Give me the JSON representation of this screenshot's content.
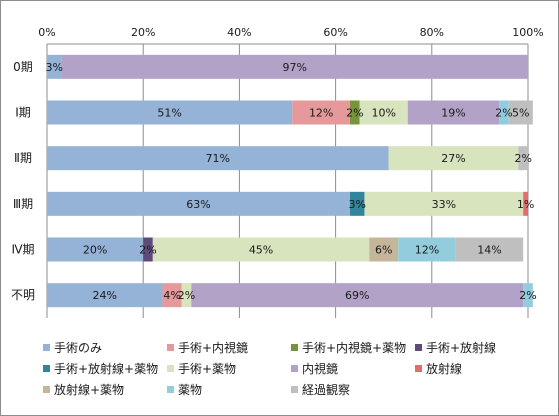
{
  "chart_data": {
    "type": "bar",
    "orientation": "horizontal",
    "stacked": "percent",
    "xlim": [
      0,
      100
    ],
    "x_ticks": [
      "0%",
      "20%",
      "40%",
      "60%",
      "80%",
      "100%"
    ],
    "grid": true,
    "legend_position": "bottom",
    "categories": [
      "0期",
      "Ⅰ期",
      "Ⅱ期",
      "Ⅲ期",
      "Ⅳ期",
      "不明"
    ],
    "series": [
      {
        "name": "手術のみ",
        "color": "#95b3d7",
        "values": [
          3,
          51,
          71,
          63,
          20,
          24
        ],
        "labels": [
          "3%",
          "51%",
          "71%",
          "63%",
          "20%",
          "24%"
        ]
      },
      {
        "name": "手術+内視鏡",
        "color": "#e6999a",
        "values": [
          0,
          12,
          0,
          0,
          0,
          4
        ],
        "labels": [
          "",
          "12%",
          "",
          "",
          "",
          "4%"
        ]
      },
      {
        "name": "手術+内視鏡+薬物",
        "color": "#77933c",
        "values": [
          0,
          2,
          0,
          0,
          0,
          0
        ],
        "labels": [
          "",
          "2%",
          "",
          "",
          "",
          ""
        ]
      },
      {
        "name": "手術+放射線",
        "color": "#604a7b",
        "values": [
          0,
          0,
          0,
          0,
          2,
          0
        ],
        "labels": [
          "",
          "",
          "",
          "",
          "2%",
          ""
        ]
      },
      {
        "name": "手術+放射線+薬物",
        "color": "#31859c",
        "values": [
          0,
          0,
          0,
          3,
          0,
          0
        ],
        "labels": [
          "",
          "",
          "",
          "3%",
          "",
          ""
        ]
      },
      {
        "name": "手術+薬物",
        "color": "#d7e4bd",
        "values": [
          0,
          10,
          27,
          33,
          45,
          2
        ],
        "labels": [
          "",
          "10%",
          "27%",
          "33%",
          "45%",
          "2%"
        ]
      },
      {
        "name": "内視鏡",
        "color": "#b3a2c7",
        "values": [
          97,
          19,
          0,
          0,
          0,
          69
        ],
        "labels": [
          "97%",
          "19%",
          "",
          "",
          "",
          "69%"
        ]
      },
      {
        "name": "放射線",
        "color": "#e46c6c",
        "values": [
          0,
          0,
          0,
          1,
          0,
          0
        ],
        "labels": [
          "",
          "",
          "",
          "1%",
          "",
          ""
        ]
      },
      {
        "name": "放射線+薬物",
        "color": "#c4b59b",
        "values": [
          0,
          0,
          0,
          0,
          6,
          0
        ],
        "labels": [
          "",
          "",
          "",
          "",
          "6%",
          ""
        ]
      },
      {
        "name": "薬物",
        "color": "#93cddd",
        "values": [
          0,
          2,
          0,
          0,
          12,
          2
        ],
        "labels": [
          "",
          "2%",
          "",
          "",
          "12%",
          "2%"
        ]
      },
      {
        "name": "経過観察",
        "color": "#bfbfbf",
        "values": [
          0,
          5,
          2,
          0,
          14,
          0
        ],
        "labels": [
          "",
          "5%",
          "2%",
          "",
          "14%",
          ""
        ]
      }
    ]
  }
}
